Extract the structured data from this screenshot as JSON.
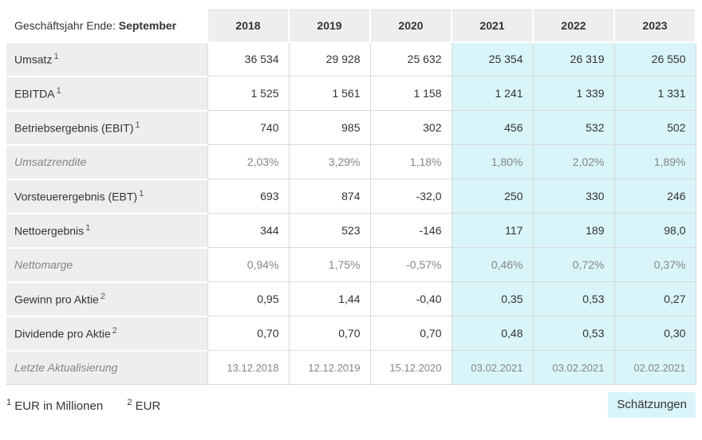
{
  "table": {
    "header": {
      "label_prefix": "Geschäftsjahr Ende: ",
      "label_bold": "September",
      "years": [
        "2018",
        "2019",
        "2020",
        "2021",
        "2022",
        "2023"
      ]
    },
    "estimate_start_index": 3,
    "rows": [
      {
        "label": "Umsatz",
        "sup": "1",
        "style": "normal",
        "values": [
          "36 534",
          "29 928",
          "25 632",
          "25 354",
          "26 319",
          "26 550"
        ]
      },
      {
        "label": "EBITDA",
        "sup": "1",
        "style": "normal",
        "values": [
          "1 525",
          "1 561",
          "1 158",
          "1 241",
          "1 339",
          "1 331"
        ]
      },
      {
        "label": "Betriebsergebnis (EBIT)",
        "sup": "1",
        "style": "normal",
        "values": [
          "740",
          "985",
          "302",
          "456",
          "532",
          "502"
        ]
      },
      {
        "label": "Umsatzrendite",
        "sup": "",
        "style": "muted",
        "values": [
          "2,03%",
          "3,29%",
          "1,18%",
          "1,80%",
          "2,02%",
          "1,89%"
        ]
      },
      {
        "label": "Vorsteuerergebnis (EBT)",
        "sup": "1",
        "style": "normal",
        "values": [
          "693",
          "874",
          "-32,0",
          "250",
          "330",
          "246"
        ]
      },
      {
        "label": "Nettoergebnis",
        "sup": "1",
        "style": "normal",
        "values": [
          "344",
          "523",
          "-146",
          "117",
          "189",
          "98,0"
        ]
      },
      {
        "label": "Nettomarge",
        "sup": "",
        "style": "muted",
        "values": [
          "0,94%",
          "1,75%",
          "-0,57%",
          "0,46%",
          "0,72%",
          "0,37%"
        ]
      },
      {
        "label": "Gewinn pro Aktie",
        "sup": "2",
        "style": "normal",
        "values": [
          "0,95",
          "1,44",
          "-0,40",
          "0,35",
          "0,53",
          "0,27"
        ]
      },
      {
        "label": "Dividende pro Aktie",
        "sup": "2",
        "style": "normal",
        "values": [
          "0,70",
          "0,70",
          "0,70",
          "0,48",
          "0,53",
          "0,30"
        ]
      },
      {
        "label": "Letzte Aktualisierung",
        "sup": "",
        "style": "muted dates",
        "values": [
          "13.12.2018",
          "12.12.2019",
          "15.12.2020",
          "03.02.2021",
          "03.02.2021",
          "02.02.2021"
        ]
      }
    ]
  },
  "footer": {
    "footnotes": [
      {
        "sup": "1",
        "text": "EUR in Millionen"
      },
      {
        "sup": "2",
        "text": "EUR"
      }
    ],
    "estimates_label": "Schätzungen"
  },
  "colors": {
    "estimate_bg": "#d9f5f9",
    "header_bg": "#eeeeee",
    "label_bg": "#eeeeee",
    "border": "#d9d9d9",
    "muted_text": "#858585"
  }
}
